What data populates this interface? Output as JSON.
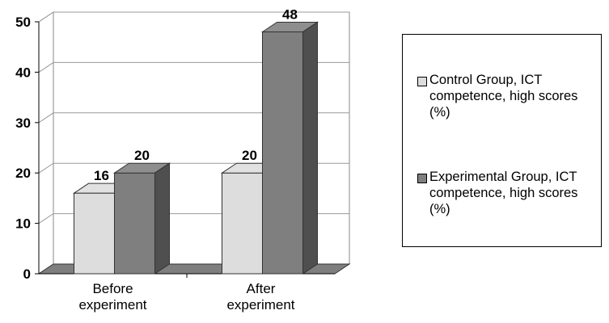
{
  "chart_data": {
    "type": "bar",
    "categories": [
      "Before experiment",
      "After experiment"
    ],
    "series": [
      {
        "name": "Control Group, ICT competence, high scores (%)",
        "values": [
          16,
          20
        ],
        "color": "#dddddd"
      },
      {
        "name": "Experimental Group, ICT competence, high scores  (%)",
        "values": [
          20,
          48
        ],
        "color": "#7f7f7f"
      }
    ],
    "data_labels": [
      "16",
      "20",
      "20",
      "48"
    ],
    "y_ticks": [
      "0",
      "10",
      "20",
      "30",
      "40",
      "50"
    ],
    "ylim": [
      0,
      50
    ],
    "grid": true,
    "three_d": true,
    "legend_position": "right",
    "title": "",
    "xlabel": "",
    "ylabel": ""
  },
  "legend": {
    "item1": "Control Group, ICT competence, high scores (%)",
    "item2": "Experimental Group, ICT competence, high scores  (%)"
  }
}
